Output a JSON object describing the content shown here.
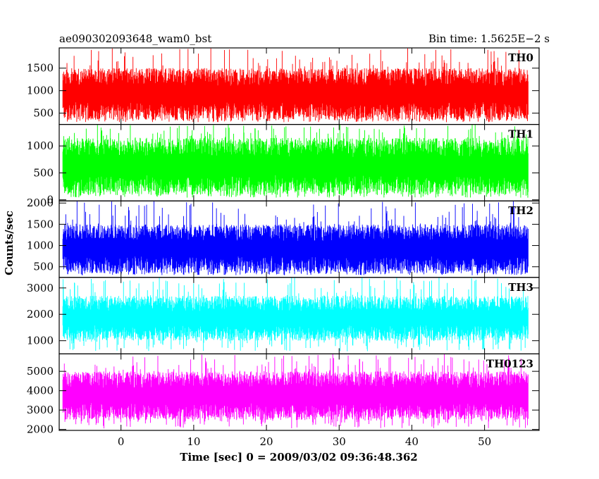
{
  "chart_data": {
    "type": "line",
    "title_left": "ae090302093648_wam0_bst",
    "title_right": "Bin time: 1.5625E−2 s",
    "xlabel": "Time [sec] 0 = 2009/03/02 09:36:48.362",
    "ylabel": "Counts/sec",
    "xlim": [
      -8.5,
      57.5
    ],
    "x_data_range": [
      -8.0,
      56.0
    ],
    "xticks": [
      0,
      10,
      20,
      30,
      40,
      50
    ],
    "grid": false,
    "panels": [
      {
        "name": "TH0",
        "color": "#ff0000",
        "ylim": [
          250,
          1950
        ],
        "yticks": [
          500,
          1000,
          1500
        ],
        "baseline": 250,
        "typical_range": [
          350,
          1500
        ],
        "spike_max": 1950,
        "noise_floor": 300
      },
      {
        "name": "TH1",
        "color": "#00ff00",
        "ylim": [
          -20,
          1400
        ],
        "yticks": [
          0,
          500,
          1000
        ],
        "baseline": -20,
        "typical_range": [
          100,
          1150
        ],
        "spike_max": 1400,
        "noise_floor": 40
      },
      {
        "name": "TH2",
        "color": "#0000ff",
        "ylim": [
          250,
          2050
        ],
        "yticks": [
          500,
          1000,
          1500,
          2000
        ],
        "baseline": 250,
        "typical_range": [
          350,
          1500
        ],
        "spike_max": 2050,
        "noise_floor": 300
      },
      {
        "name": "TH3",
        "color": "#00ffff",
        "ylim": [
          500,
          3400
        ],
        "yticks": [
          1000,
          2000,
          3000
        ],
        "baseline": 500,
        "typical_range": [
          1000,
          2700
        ],
        "spike_max": 3400,
        "noise_floor": 600
      },
      {
        "name": "TH0123",
        "color": "#ff00ff",
        "ylim": [
          1950,
          5900
        ],
        "yticks": [
          2000,
          3000,
          4000,
          5000
        ],
        "baseline": 1950,
        "typical_range": [
          2500,
          5000
        ],
        "spike_max": 5900,
        "noise_floor": 2050
      }
    ]
  }
}
